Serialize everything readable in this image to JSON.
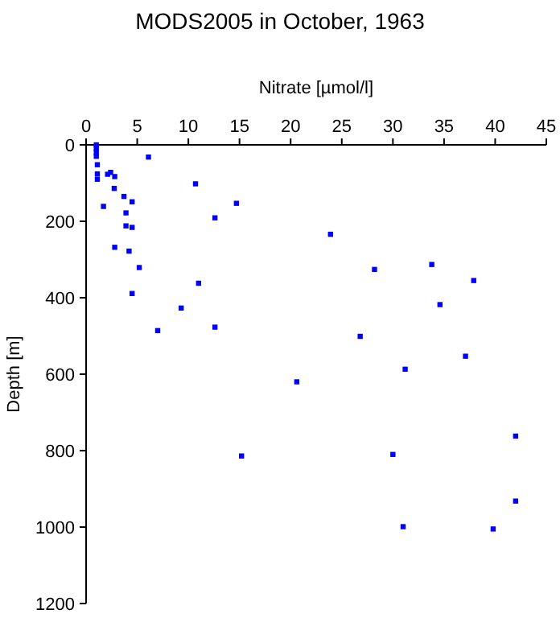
{
  "chart_data": {
    "type": "scatter",
    "title": "MODS2005 in October, 1963",
    "xlabel": "Nitrate [µmol/l]",
    "ylabel": "Depth [m]",
    "x": [
      1.0,
      1.0,
      1.0,
      1.0,
      1.1,
      6.1,
      1.1,
      1.1,
      2.1,
      2.4,
      2.8,
      2.75,
      10.7,
      3.7,
      4.5,
      14.7,
      1.7,
      3.9,
      12.6,
      3.9,
      4.5,
      2.8,
      4.2,
      5.2,
      11.0,
      4.5,
      9.3,
      7.0,
      12.6,
      23.9,
      28.2,
      33.8,
      37.9,
      34.6,
      26.8,
      37.1,
      31.2,
      20.6,
      15.2,
      30.0,
      42.0,
      42.0,
      31.0,
      39.8
    ],
    "values": [
      0,
      10,
      20,
      30,
      52,
      32,
      76,
      90,
      77,
      72,
      83,
      114,
      102,
      135,
      149,
      153,
      161,
      178,
      191,
      212,
      216,
      268,
      278,
      321,
      362,
      389,
      427,
      486,
      477,
      234,
      326,
      313,
      355,
      418,
      501,
      553,
      587,
      620,
      814,
      810,
      762,
      932,
      999,
      1005
    ],
    "color": "#0000ff",
    "marker": "square",
    "xlim": [
      0,
      45
    ],
    "xticks": [
      0,
      5,
      10,
      15,
      20,
      25,
      30,
      35,
      40,
      45
    ],
    "ylim": [
      1200,
      0
    ],
    "yticks": [
      0,
      200,
      400,
      600,
      800,
      1000,
      1200
    ]
  }
}
